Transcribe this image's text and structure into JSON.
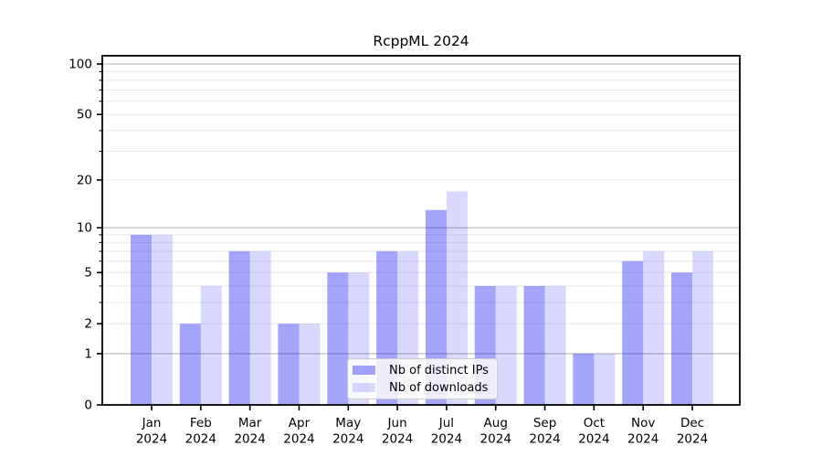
{
  "figure": {
    "title": "RcppML 2024",
    "background": "#ffffff"
  },
  "chart_data": {
    "type": "bar",
    "title": "RcppML 2024",
    "categories": [
      "Jan",
      "Feb",
      "Mar",
      "Apr",
      "May",
      "Jun",
      "Jul",
      "Aug",
      "Sep",
      "Oct",
      "Nov",
      "Dec"
    ],
    "x_year_label": "2024",
    "series": [
      {
        "name": "Nb of distinct IPs",
        "color": "rgba(16,16,240,0.38)",
        "values": [
          9,
          2,
          7,
          2,
          5,
          7,
          13,
          4,
          4,
          1,
          6,
          5
        ]
      },
      {
        "name": "Nb of downloads",
        "color": "rgba(16,16,240,0.16)",
        "values": [
          9,
          4,
          7,
          2,
          5,
          7,
          17,
          4,
          4,
          1,
          7,
          7
        ]
      }
    ],
    "xlabel": "",
    "ylabel": "",
    "yscale": "log1p",
    "ylim": [
      0,
      112
    ],
    "y_tick_values": [
      0,
      1,
      2,
      5,
      10,
      20,
      50,
      100
    ],
    "y_major_gridlines": [
      1,
      10,
      100
    ],
    "y_minor_gridlines": [
      2,
      3,
      4,
      5,
      6,
      7,
      8,
      9,
      20,
      30,
      40,
      50,
      60,
      70,
      80,
      90
    ],
    "grid": true,
    "legend_position": "lower center",
    "colors": {
      "axis": "#000000",
      "text": "#000000",
      "grid_major": "#b6b6b6",
      "grid_minor": "#e8e8e8",
      "legend_border": "#cccccc"
    }
  }
}
